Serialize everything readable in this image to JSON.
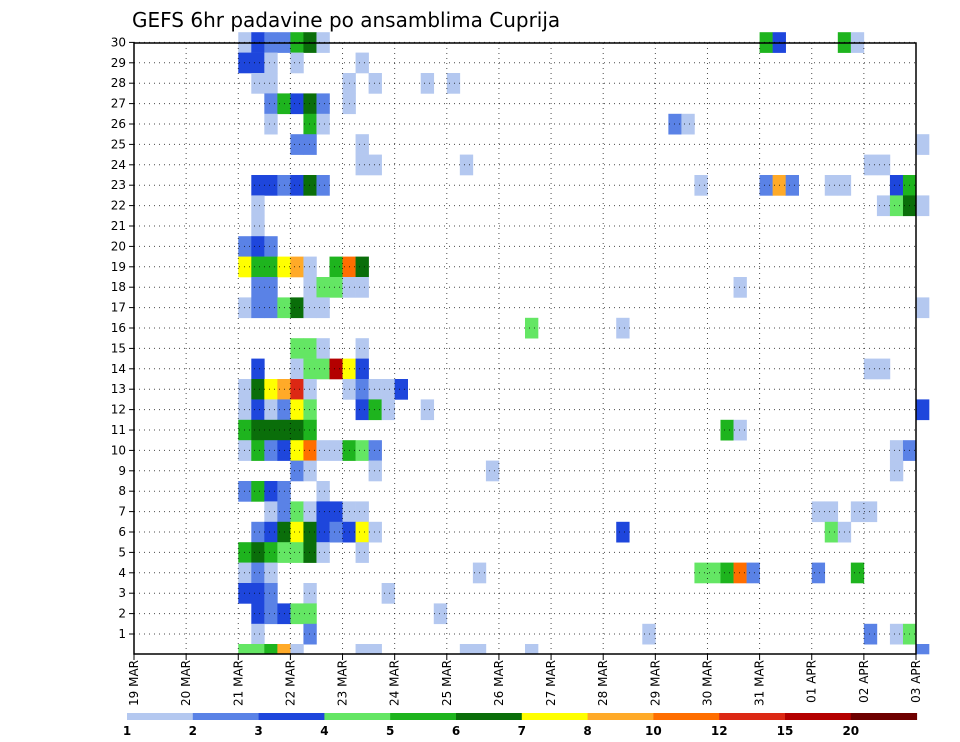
{
  "chart_data": {
    "type": "heatmap",
    "title": "GEFS 6hr padavine po ansamblima Cuprija",
    "xlabel": "",
    "ylabel": "",
    "x_ticks": [
      "19 MAR",
      "20 MAR",
      "21 MAR",
      "22 MAR",
      "23 MAR",
      "24 MAR",
      "25 MAR",
      "26 MAR",
      "27 MAR",
      "28 MAR",
      "29 MAR",
      "30 MAR",
      "31 MAR",
      "01 APR",
      "02 APR",
      "03 APR"
    ],
    "x_range_days": [
      0,
      15
    ],
    "steps_per_day": 4,
    "members": [
      1,
      30
    ],
    "y_ticks": [
      "1",
      "2",
      "3",
      "4",
      "5",
      "6",
      "7",
      "8",
      "9",
      "10",
      "11",
      "12",
      "13",
      "14",
      "15",
      "16",
      "17",
      "18",
      "19",
      "20",
      "21",
      "22",
      "23",
      "24",
      "25",
      "26",
      "27",
      "28",
      "29",
      "30"
    ],
    "grid": true,
    "legend": {
      "placement": "bottom",
      "labels": [
        "1",
        "2",
        "3",
        "4",
        "5",
        "6",
        "7",
        "8",
        "10",
        "12",
        "15",
        "20"
      ],
      "colors": [
        "#b4c8f0",
        "#5a82e6",
        "#1e46dc",
        "#64e664",
        "#1eb41e",
        "#0a6e0a",
        "#ffff00",
        "#ffaa28",
        "#ff6e00",
        "#dc2814",
        "#b40000",
        "#6e0000"
      ]
    },
    "cells": [
      {
        "member": 30,
        "step": 8,
        "class": 1
      },
      {
        "member": 30,
        "step": 9,
        "class": 3
      },
      {
        "member": 30,
        "step": 10,
        "class": 2
      },
      {
        "member": 30,
        "step": 11,
        "class": 2
      },
      {
        "member": 30,
        "step": 12,
        "class": 5
      },
      {
        "member": 30,
        "step": 13,
        "class": 6
      },
      {
        "member": 30,
        "step": 14,
        "class": 1
      },
      {
        "member": 30,
        "step": 48,
        "class": 5
      },
      {
        "member": 30,
        "step": 49,
        "class": 3
      },
      {
        "member": 30,
        "step": 54,
        "class": 5
      },
      {
        "member": 30,
        "step": 55,
        "class": 1
      },
      {
        "member": 29,
        "step": 8,
        "class": 3
      },
      {
        "member": 29,
        "step": 9,
        "class": 3
      },
      {
        "member": 29,
        "step": 10,
        "class": 1
      },
      {
        "member": 29,
        "step": 12,
        "class": 1
      },
      {
        "member": 29,
        "step": 17,
        "class": 1
      },
      {
        "member": 28,
        "step": 9,
        "class": 1
      },
      {
        "member": 28,
        "step": 10,
        "class": 1
      },
      {
        "member": 28,
        "step": 16,
        "class": 1
      },
      {
        "member": 28,
        "step": 18,
        "class": 1
      },
      {
        "member": 28,
        "step": 22,
        "class": 1
      },
      {
        "member": 28,
        "step": 24,
        "class": 1
      },
      {
        "member": 27,
        "step": 10,
        "class": 2
      },
      {
        "member": 27,
        "step": 11,
        "class": 5
      },
      {
        "member": 27,
        "step": 12,
        "class": 3
      },
      {
        "member": 27,
        "step": 13,
        "class": 6
      },
      {
        "member": 27,
        "step": 14,
        "class": 2
      },
      {
        "member": 27,
        "step": 16,
        "class": 1
      },
      {
        "member": 26,
        "step": 10,
        "class": 1
      },
      {
        "member": 26,
        "step": 13,
        "class": 5
      },
      {
        "member": 26,
        "step": 14,
        "class": 1
      },
      {
        "member": 26,
        "step": 41,
        "class": 2
      },
      {
        "member": 26,
        "step": 42,
        "class": 1
      },
      {
        "member": 25,
        "step": 12,
        "class": 2
      },
      {
        "member": 25,
        "step": 13,
        "class": 2
      },
      {
        "member": 25,
        "step": 17,
        "class": 1
      },
      {
        "member": 25,
        "step": 60,
        "class": 1
      },
      {
        "member": 24,
        "step": 17,
        "class": 1
      },
      {
        "member": 24,
        "step": 18,
        "class": 1
      },
      {
        "member": 24,
        "step": 25,
        "class": 1
      },
      {
        "member": 24,
        "step": 56,
        "class": 1
      },
      {
        "member": 24,
        "step": 57,
        "class": 1
      },
      {
        "member": 23,
        "step": 9,
        "class": 3
      },
      {
        "member": 23,
        "step": 10,
        "class": 3
      },
      {
        "member": 23,
        "step": 11,
        "class": 2
      },
      {
        "member": 23,
        "step": 12,
        "class": 3
      },
      {
        "member": 23,
        "step": 13,
        "class": 6
      },
      {
        "member": 23,
        "step": 14,
        "class": 2
      },
      {
        "member": 23,
        "step": 43,
        "class": 1
      },
      {
        "member": 23,
        "step": 48,
        "class": 2
      },
      {
        "member": 23,
        "step": 49,
        "class": 8
      },
      {
        "member": 23,
        "step": 50,
        "class": 2
      },
      {
        "member": 23,
        "step": 53,
        "class": 1
      },
      {
        "member": 23,
        "step": 54,
        "class": 1
      },
      {
        "member": 23,
        "step": 58,
        "class": 3
      },
      {
        "member": 23,
        "step": 59,
        "class": 5
      },
      {
        "member": 22,
        "step": 9,
        "class": 1
      },
      {
        "member": 22,
        "step": 57,
        "class": 1
      },
      {
        "member": 22,
        "step": 58,
        "class": 4
      },
      {
        "member": 22,
        "step": 59,
        "class": 6
      },
      {
        "member": 22,
        "step": 60,
        "class": 1
      },
      {
        "member": 21,
        "step": 9,
        "class": 1
      },
      {
        "member": 20,
        "step": 8,
        "class": 2
      },
      {
        "member": 20,
        "step": 9,
        "class": 3
      },
      {
        "member": 20,
        "step": 10,
        "class": 2
      },
      {
        "member": 19,
        "step": 8,
        "class": 7
      },
      {
        "member": 19,
        "step": 9,
        "class": 5
      },
      {
        "member": 19,
        "step": 10,
        "class": 5
      },
      {
        "member": 19,
        "step": 11,
        "class": 7
      },
      {
        "member": 19,
        "step": 12,
        "class": 8
      },
      {
        "member": 19,
        "step": 13,
        "class": 1
      },
      {
        "member": 19,
        "step": 15,
        "class": 5
      },
      {
        "member": 19,
        "step": 16,
        "class": 9
      },
      {
        "member": 19,
        "step": 17,
        "class": 6
      },
      {
        "member": 18,
        "step": 9,
        "class": 2
      },
      {
        "member": 18,
        "step": 10,
        "class": 2
      },
      {
        "member": 18,
        "step": 13,
        "class": 1
      },
      {
        "member": 18,
        "step": 14,
        "class": 4
      },
      {
        "member": 18,
        "step": 15,
        "class": 4
      },
      {
        "member": 18,
        "step": 16,
        "class": 1
      },
      {
        "member": 18,
        "step": 17,
        "class": 1
      },
      {
        "member": 18,
        "step": 46,
        "class": 1
      },
      {
        "member": 17,
        "step": 8,
        "class": 1
      },
      {
        "member": 17,
        "step": 9,
        "class": 2
      },
      {
        "member": 17,
        "step": 10,
        "class": 2
      },
      {
        "member": 17,
        "step": 11,
        "class": 4
      },
      {
        "member": 17,
        "step": 12,
        "class": 6
      },
      {
        "member": 17,
        "step": 13,
        "class": 1
      },
      {
        "member": 17,
        "step": 14,
        "class": 1
      },
      {
        "member": 17,
        "step": 60,
        "class": 1
      },
      {
        "member": 16,
        "step": 30,
        "class": 4
      },
      {
        "member": 16,
        "step": 37,
        "class": 1
      },
      {
        "member": 15,
        "step": 12,
        "class": 4
      },
      {
        "member": 15,
        "step": 13,
        "class": 4
      },
      {
        "member": 15,
        "step": 14,
        "class": 1
      },
      {
        "member": 15,
        "step": 17,
        "class": 1
      },
      {
        "member": 14,
        "step": 9,
        "class": 3
      },
      {
        "member": 14,
        "step": 12,
        "class": 1
      },
      {
        "member": 14,
        "step": 13,
        "class": 4
      },
      {
        "member": 14,
        "step": 14,
        "class": 4
      },
      {
        "member": 14,
        "step": 15,
        "class": 11
      },
      {
        "member": 14,
        "step": 16,
        "class": 7
      },
      {
        "member": 14,
        "step": 17,
        "class": 3
      },
      {
        "member": 14,
        "step": 56,
        "class": 1
      },
      {
        "member": 14,
        "step": 57,
        "class": 1
      },
      {
        "member": 13,
        "step": 8,
        "class": 1
      },
      {
        "member": 13,
        "step": 9,
        "class": 6
      },
      {
        "member": 13,
        "step": 10,
        "class": 7
      },
      {
        "member": 13,
        "step": 11,
        "class": 8
      },
      {
        "member": 13,
        "step": 12,
        "class": 10
      },
      {
        "member": 13,
        "step": 13,
        "class": 1
      },
      {
        "member": 13,
        "step": 16,
        "class": 1
      },
      {
        "member": 13,
        "step": 17,
        "class": 2
      },
      {
        "member": 13,
        "step": 18,
        "class": 1
      },
      {
        "member": 13,
        "step": 19,
        "class": 1
      },
      {
        "member": 13,
        "step": 20,
        "class": 3
      },
      {
        "member": 12,
        "step": 8,
        "class": 1
      },
      {
        "member": 12,
        "step": 9,
        "class": 3
      },
      {
        "member": 12,
        "step": 10,
        "class": 1
      },
      {
        "member": 12,
        "step": 11,
        "class": 2
      },
      {
        "member": 12,
        "step": 12,
        "class": 7
      },
      {
        "member": 12,
        "step": 13,
        "class": 4
      },
      {
        "member": 12,
        "step": 17,
        "class": 3
      },
      {
        "member": 12,
        "step": 18,
        "class": 5
      },
      {
        "member": 12,
        "step": 19,
        "class": 1
      },
      {
        "member": 12,
        "step": 22,
        "class": 1
      },
      {
        "member": 12,
        "step": 60,
        "class": 3
      },
      {
        "member": 11,
        "step": 8,
        "class": 5
      },
      {
        "member": 11,
        "step": 9,
        "class": 6
      },
      {
        "member": 11,
        "step": 10,
        "class": 6
      },
      {
        "member": 11,
        "step": 11,
        "class": 6
      },
      {
        "member": 11,
        "step": 12,
        "class": 6
      },
      {
        "member": 11,
        "step": 13,
        "class": 5
      },
      {
        "member": 11,
        "step": 45,
        "class": 5
      },
      {
        "member": 11,
        "step": 46,
        "class": 1
      },
      {
        "member": 10,
        "step": 8,
        "class": 1
      },
      {
        "member": 10,
        "step": 9,
        "class": 5
      },
      {
        "member": 10,
        "step": 10,
        "class": 2
      },
      {
        "member": 10,
        "step": 11,
        "class": 3
      },
      {
        "member": 10,
        "step": 12,
        "class": 7
      },
      {
        "member": 10,
        "step": 13,
        "class": 9
      },
      {
        "member": 10,
        "step": 14,
        "class": 1
      },
      {
        "member": 10,
        "step": 15,
        "class": 1
      },
      {
        "member": 10,
        "step": 16,
        "class": 5
      },
      {
        "member": 10,
        "step": 17,
        "class": 4
      },
      {
        "member": 10,
        "step": 18,
        "class": 2
      },
      {
        "member": 10,
        "step": 58,
        "class": 1
      },
      {
        "member": 10,
        "step": 59,
        "class": 2
      },
      {
        "member": 9,
        "step": 12,
        "class": 2
      },
      {
        "member": 9,
        "step": 13,
        "class": 1
      },
      {
        "member": 9,
        "step": 18,
        "class": 1
      },
      {
        "member": 9,
        "step": 27,
        "class": 1
      },
      {
        "member": 9,
        "step": 58,
        "class": 1
      },
      {
        "member": 8,
        "step": 8,
        "class": 2
      },
      {
        "member": 8,
        "step": 9,
        "class": 5
      },
      {
        "member": 8,
        "step": 10,
        "class": 3
      },
      {
        "member": 8,
        "step": 11,
        "class": 2
      },
      {
        "member": 8,
        "step": 14,
        "class": 1
      },
      {
        "member": 7,
        "step": 10,
        "class": 1
      },
      {
        "member": 7,
        "step": 11,
        "class": 2
      },
      {
        "member": 7,
        "step": 12,
        "class": 4
      },
      {
        "member": 7,
        "step": 13,
        "class": 1
      },
      {
        "member": 7,
        "step": 14,
        "class": 3
      },
      {
        "member": 7,
        "step": 15,
        "class": 3
      },
      {
        "member": 7,
        "step": 16,
        "class": 1
      },
      {
        "member": 7,
        "step": 17,
        "class": 1
      },
      {
        "member": 7,
        "step": 52,
        "class": 1
      },
      {
        "member": 7,
        "step": 53,
        "class": 1
      },
      {
        "member": 7,
        "step": 55,
        "class": 1
      },
      {
        "member": 7,
        "step": 56,
        "class": 1
      },
      {
        "member": 6,
        "step": 9,
        "class": 2
      },
      {
        "member": 6,
        "step": 10,
        "class": 3
      },
      {
        "member": 6,
        "step": 11,
        "class": 6
      },
      {
        "member": 6,
        "step": 12,
        "class": 7
      },
      {
        "member": 6,
        "step": 13,
        "class": 6
      },
      {
        "member": 6,
        "step": 14,
        "class": 3
      },
      {
        "member": 6,
        "step": 15,
        "class": 2
      },
      {
        "member": 6,
        "step": 16,
        "class": 3
      },
      {
        "member": 6,
        "step": 17,
        "class": 7
      },
      {
        "member": 6,
        "step": 18,
        "class": 1
      },
      {
        "member": 6,
        "step": 37,
        "class": 3
      },
      {
        "member": 6,
        "step": 53,
        "class": 4
      },
      {
        "member": 6,
        "step": 54,
        "class": 1
      },
      {
        "member": 5,
        "step": 8,
        "class": 5
      },
      {
        "member": 5,
        "step": 9,
        "class": 6
      },
      {
        "member": 5,
        "step": 10,
        "class": 5
      },
      {
        "member": 5,
        "step": 11,
        "class": 4
      },
      {
        "member": 5,
        "step": 12,
        "class": 4
      },
      {
        "member": 5,
        "step": 13,
        "class": 6
      },
      {
        "member": 5,
        "step": 14,
        "class": 1
      },
      {
        "member": 5,
        "step": 17,
        "class": 1
      },
      {
        "member": 4,
        "step": 8,
        "class": 1
      },
      {
        "member": 4,
        "step": 9,
        "class": 2
      },
      {
        "member": 4,
        "step": 10,
        "class": 1
      },
      {
        "member": 4,
        "step": 26,
        "class": 1
      },
      {
        "member": 4,
        "step": 43,
        "class": 4
      },
      {
        "member": 4,
        "step": 44,
        "class": 4
      },
      {
        "member": 4,
        "step": 45,
        "class": 5
      },
      {
        "member": 4,
        "step": 46,
        "class": 9
      },
      {
        "member": 4,
        "step": 47,
        "class": 2
      },
      {
        "member": 4,
        "step": 52,
        "class": 2
      },
      {
        "member": 4,
        "step": 55,
        "class": 5
      },
      {
        "member": 3,
        "step": 8,
        "class": 3
      },
      {
        "member": 3,
        "step": 9,
        "class": 3
      },
      {
        "member": 3,
        "step": 10,
        "class": 2
      },
      {
        "member": 3,
        "step": 13,
        "class": 1
      },
      {
        "member": 3,
        "step": 19,
        "class": 1
      },
      {
        "member": 2,
        "step": 9,
        "class": 3
      },
      {
        "member": 2,
        "step": 10,
        "class": 2
      },
      {
        "member": 2,
        "step": 11,
        "class": 3
      },
      {
        "member": 2,
        "step": 12,
        "class": 4
      },
      {
        "member": 2,
        "step": 13,
        "class": 4
      },
      {
        "member": 2,
        "step": 23,
        "class": 1
      },
      {
        "member": 1,
        "step": 9,
        "class": 1
      },
      {
        "member": 1,
        "step": 13,
        "class": 2
      },
      {
        "member": 1,
        "step": 39,
        "class": 1
      },
      {
        "member": 1,
        "step": 56,
        "class": 2
      },
      {
        "member": 1,
        "step": 58,
        "class": 1
      },
      {
        "member": 1,
        "step": 59,
        "class": 4
      },
      {
        "member": 0,
        "step": 8,
        "class": 4
      },
      {
        "member": 0,
        "step": 9,
        "class": 4
      },
      {
        "member": 0,
        "step": 10,
        "class": 5
      },
      {
        "member": 0,
        "step": 11,
        "class": 8
      },
      {
        "member": 0,
        "step": 12,
        "class": 1
      },
      {
        "member": 0,
        "step": 17,
        "class": 1
      },
      {
        "member": 0,
        "step": 18,
        "class": 1
      },
      {
        "member": 0,
        "step": 25,
        "class": 1
      },
      {
        "member": 0,
        "step": 26,
        "class": 1
      },
      {
        "member": 0,
        "step": 30,
        "class": 1
      },
      {
        "member": 0,
        "step": 60,
        "class": 2
      }
    ]
  }
}
